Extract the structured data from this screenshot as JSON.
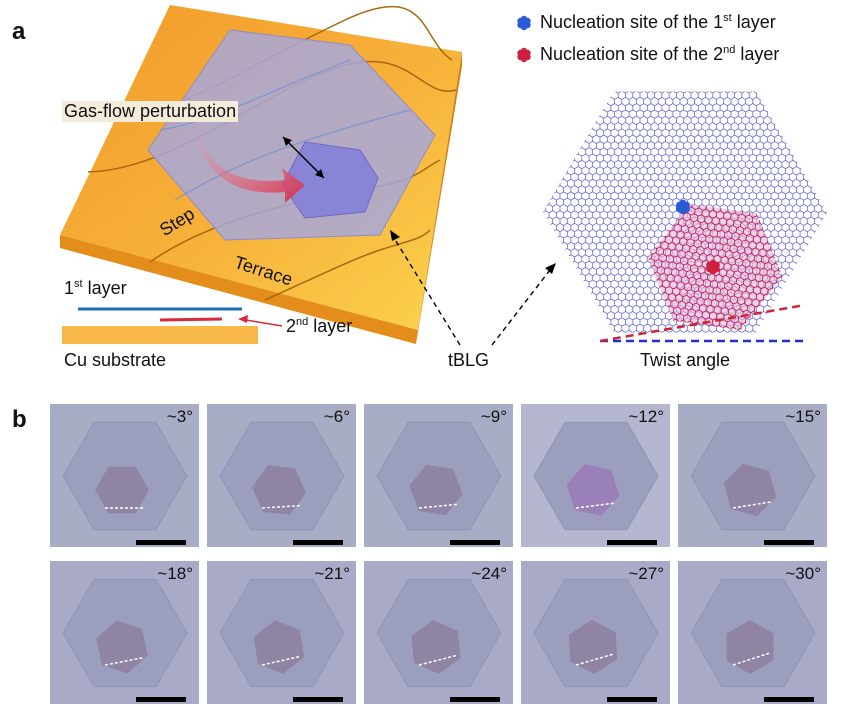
{
  "panel_a": {
    "letter": "a",
    "gas_flow_label": "Gas-flow perturbation",
    "step_label": "Step",
    "terrace_label": "Terrace",
    "layer1_text": "1",
    "layer1_sup": "st",
    "layer1_suffix": " layer",
    "layer2_text": "2",
    "layer2_sup": "nd",
    "layer2_suffix": " layer",
    "cu_label": "Cu substrate",
    "tblg_label": "tBLG",
    "twist_label": "Twist angle",
    "legend": [
      {
        "prefix": "Nucleation site of the 1",
        "sup": "st",
        "suffix": " layer",
        "color": "#2a5bd7"
      },
      {
        "prefix": "Nucleation site of the 2",
        "sup": "nd",
        "suffix": " layer",
        "color": "#d0203f"
      }
    ],
    "colors": {
      "substrate": "#f6a531",
      "substrate_side": "#e08f1c",
      "graphene_layer": "#a8a8d8",
      "second_layer": "#8c86d6",
      "arrow": "#d8304a",
      "lattice_1": "#5a5ad0",
      "lattice_2": "#c21c6a",
      "twist_line_1": "#1f2fd0",
      "twist_line_2": "#c8283a"
    }
  },
  "panel_b": {
    "letter": "b",
    "tiles": [
      {
        "angle": "~3°",
        "rot": 0
      },
      {
        "angle": "~6°",
        "rot": 6
      },
      {
        "angle": "~9°",
        "rot": 9
      },
      {
        "angle": "~12°",
        "rot": 12
      },
      {
        "angle": "~15°",
        "rot": 15
      },
      {
        "angle": "~18°",
        "rot": 18
      },
      {
        "angle": "~21°",
        "rot": 21
      },
      {
        "angle": "~24°",
        "rot": 24
      },
      {
        "angle": "~27°",
        "rot": 27
      },
      {
        "angle": "~30°",
        "rot": 30
      }
    ]
  }
}
